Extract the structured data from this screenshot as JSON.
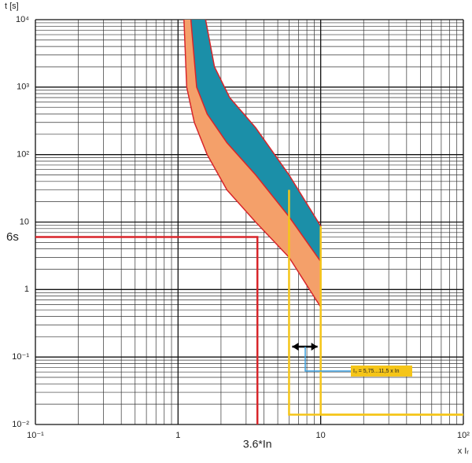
{
  "chart_data": {
    "type": "line",
    "log_x": true,
    "log_y": true,
    "grid": true,
    "minor_grid": true,
    "x_label": "x Iᵣ",
    "y_label": "t [s]",
    "xlim": [
      0.1,
      100
    ],
    "ylim": [
      0.01,
      10000
    ],
    "xticks": [
      {
        "value": 0.1,
        "label": "10⁻¹"
      },
      1,
      10,
      {
        "value": 100,
        "label": "10²"
      }
    ],
    "yticks": [
      {
        "value": 0.01,
        "label": "10⁻²"
      },
      {
        "value": 0.1,
        "label": "10⁻¹"
      },
      1,
      10,
      {
        "value": 100,
        "label": "10²"
      },
      {
        "value": 1000,
        "label": "10³"
      },
      {
        "value": 10000,
        "label": "10⁴"
      }
    ],
    "bands": [
      {
        "color": "#f4a06a",
        "lower": 0,
        "upper": 1
      },
      {
        "color": "#1b8fa8",
        "lower": 1,
        "upper": 2
      }
    ],
    "series": [
      {
        "color": "#d8252a",
        "x": [
          1.1,
          1.15,
          1.3,
          1.6,
          2.2,
          3.5,
          6,
          10
        ],
        "values": [
          10000,
          1000,
          300,
          100,
          30,
          10,
          3,
          0.55
        ]
      },
      {
        "color": "#d8252a",
        "x": [
          1.23,
          1.35,
          1.6,
          2.2,
          3.5,
          6,
          10
        ],
        "values": [
          10000,
          1000,
          400,
          150,
          50,
          12,
          2.6
        ]
      },
      {
        "color": "#d8252a",
        "x": [
          1.56,
          1.8,
          2.3,
          3.5,
          6,
          10
        ],
        "values": [
          10000,
          2000,
          700,
          250,
          50,
          8.7
        ]
      },
      {
        "color": "#f5c518",
        "x": [
          6,
          6,
          100
        ],
        "values": [
          30,
          0.014,
          0.014
        ]
      },
      {
        "color": "#f5c518",
        "x": [
          10,
          10,
          100
        ],
        "values": [
          8.7,
          0.014,
          0.014
        ]
      },
      {
        "color": "#d8252a",
        "x": [
          0.1,
          3.6,
          3.6
        ],
        "values": [
          6,
          6,
          0.01
        ]
      }
    ],
    "annotations": [
      "6s",
      "3.6*In",
      "I₃ = 5,75...11,5 x In"
    ]
  }
}
